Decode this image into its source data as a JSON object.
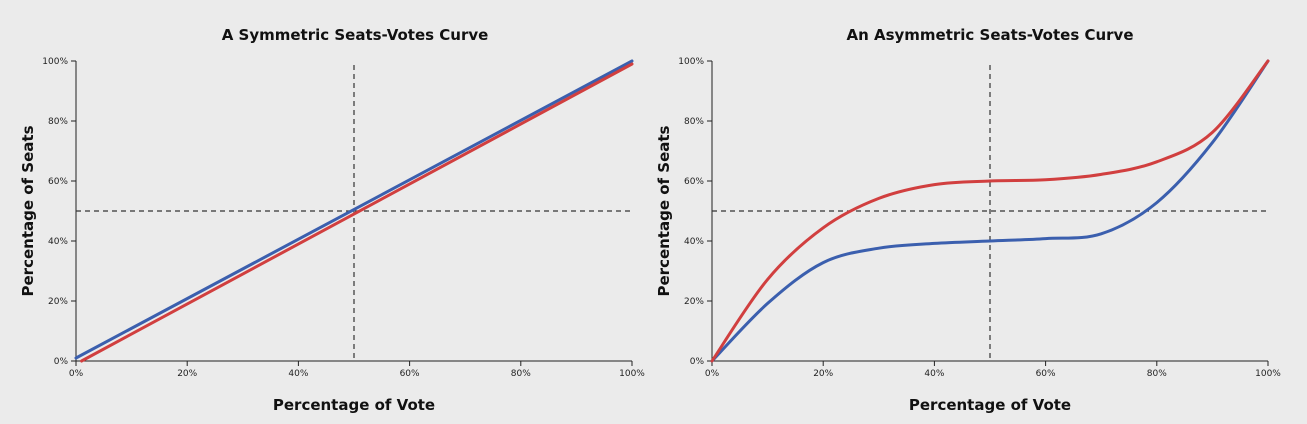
{
  "chart_data": [
    {
      "type": "line",
      "title": "A Symmetric Seats-Votes Curve",
      "xlabel": "Percentage of Vote",
      "ylabel": "Percentage of Seats",
      "xlim": [
        0,
        100
      ],
      "ylim": [
        0,
        100
      ],
      "x_ticks": [
        "0%",
        "20%",
        "40%",
        "60%",
        "80%",
        "100%"
      ],
      "y_ticks": [
        "0%",
        "20%",
        "40%",
        "60%",
        "80%",
        "100%"
      ],
      "reference_lines": {
        "vote": 50,
        "seats": 50
      },
      "grid": false,
      "series": [
        {
          "color": "#3b5fae",
          "points": [
            [
              0,
              1
            ],
            [
              100,
              100
            ]
          ]
        },
        {
          "color": "#d13f3f",
          "points": [
            [
              1,
              0
            ],
            [
              100,
              99
            ]
          ]
        }
      ]
    },
    {
      "type": "line",
      "title": "An Asymmetric Seats-Votes Curve",
      "xlabel": "Percentage of Vote",
      "ylabel": "Percentage of Seats",
      "xlim": [
        0,
        100
      ],
      "ylim": [
        0,
        100
      ],
      "x_ticks": [
        "0%",
        "20%",
        "40%",
        "60%",
        "80%",
        "100%"
      ],
      "y_ticks": [
        "0%",
        "20%",
        "40%",
        "60%",
        "80%",
        "100%"
      ],
      "reference_lines": {
        "vote": 50,
        "seats": 50
      },
      "grid": false,
      "series": [
        {
          "color": "#3b5fae",
          "points": [
            [
              0,
              0
            ],
            [
              10,
              19.2
            ],
            [
              20,
              32.8
            ],
            [
              30,
              37.6
            ],
            [
              40,
              39.2
            ],
            [
              50,
              40
            ],
            [
              60,
              40.8
            ],
            [
              70,
              42.4
            ],
            [
              80,
              52.8
            ],
            [
              90,
              72.8
            ],
            [
              100,
              100
            ]
          ]
        },
        {
          "color": "#d13f3f",
          "points": [
            [
              0,
              0
            ],
            [
              10,
              27.2
            ],
            [
              20,
              44.4
            ],
            [
              30,
              54.2
            ],
            [
              40,
              58.8
            ],
            [
              50,
              60
            ],
            [
              60,
              60.4
            ],
            [
              70,
              62.2
            ],
            [
              80,
              66.4
            ],
            [
              90,
              76.2
            ],
            [
              100,
              100
            ]
          ]
        }
      ]
    }
  ]
}
